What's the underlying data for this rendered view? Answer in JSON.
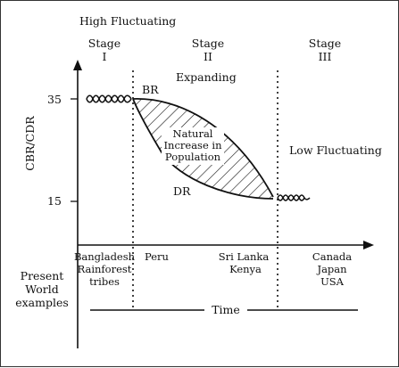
{
  "title": "High Fluctuating",
  "stages": [
    {
      "label": "Stage",
      "numeral": "I"
    },
    {
      "label": "Stage",
      "numeral": "II"
    },
    {
      "label": "Stage",
      "numeral": "III"
    }
  ],
  "stage2_note": "Expanding",
  "stage3_note": "Low Fluctuating",
  "y_axis_label": "CBR/CDR",
  "y_ticks": [
    "35",
    "15"
  ],
  "curve_labels": {
    "birth_rate": "BR",
    "death_rate": "DR"
  },
  "shaded_label": [
    "Natural",
    "Increase in",
    "Population"
  ],
  "examples_heading": [
    "Present",
    "World",
    "examples"
  ],
  "examples": [
    [
      "Bangladesh",
      "Rainforest",
      "tribes"
    ],
    [
      "Peru"
    ],
    [
      "Sri Lanka",
      "Kenya"
    ],
    [
      "Canada",
      "Japan",
      "USA"
    ]
  ],
  "time_label": "Time"
}
